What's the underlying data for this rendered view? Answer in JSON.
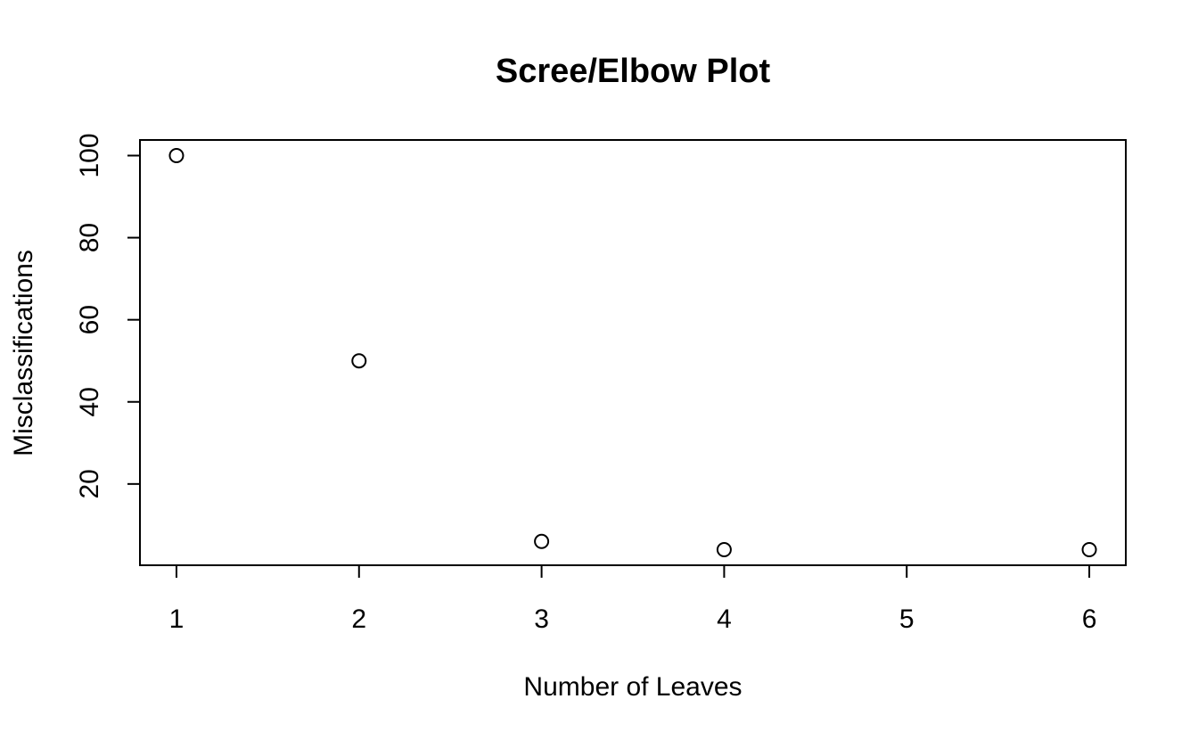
{
  "chart_data": {
    "type": "scatter",
    "title": "Scree/Elbow Plot",
    "xlabel": "Number of Leaves",
    "ylabel": "Misclassifications",
    "x": [
      1,
      2,
      3,
      4,
      6
    ],
    "y": [
      100,
      50,
      6,
      4,
      4
    ],
    "xlim": [
      0.8,
      6.2
    ],
    "ylim": [
      0.2,
      103.8
    ],
    "xticks": [
      1,
      2,
      3,
      4,
      5,
      6
    ],
    "yticks": [
      20,
      40,
      60,
      80,
      100
    ],
    "marker": "open-circle",
    "grid": false,
    "legend": "none",
    "colors": {
      "point": "#000000",
      "frame": "#000000",
      "background": "#ffffff"
    }
  }
}
